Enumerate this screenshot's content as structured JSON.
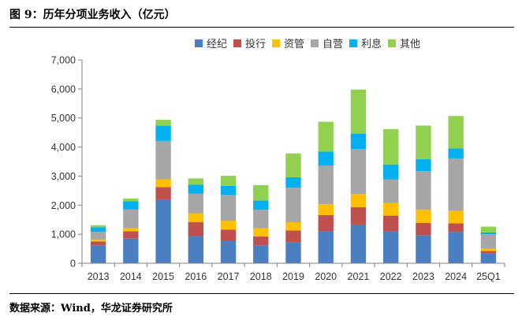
{
  "figure_title": "图 9：历年分项业务收入（亿元）",
  "source_note": "数据来源：Wind，华龙证券研究所",
  "chart_data": {
    "type": "bar",
    "stacked": true,
    "categories": [
      "2013",
      "2014",
      "2015",
      "2016",
      "2017",
      "2018",
      "2019",
      "2020",
      "2021",
      "2022",
      "2023",
      "2024",
      "25Q1"
    ],
    "ylim": [
      0,
      7000
    ],
    "yticks": [
      0,
      1000,
      2000,
      3000,
      4000,
      5000,
      6000,
      7000
    ],
    "ytick_labels": [
      "0",
      "1,000",
      "2,000",
      "3,000",
      "4,000",
      "5,000",
      "6,000",
      "7,000"
    ],
    "legend_position": "top",
    "grid": false,
    "series": [
      {
        "name": "经纪",
        "color": "#4a7fc1",
        "values": [
          620,
          850,
          2200,
          920,
          760,
          620,
          730,
          1100,
          1330,
          1100,
          960,
          1080,
          330
        ]
      },
      {
        "name": "投行",
        "color": "#c0504d",
        "values": [
          130,
          250,
          420,
          500,
          400,
          300,
          400,
          560,
          600,
          540,
          430,
          290,
          90
        ]
      },
      {
        "name": "资管",
        "color": "#ffc000",
        "values": [
          60,
          100,
          270,
          300,
          300,
          280,
          280,
          370,
          450,
          430,
          450,
          430,
          80
        ]
      },
      {
        "name": "自营",
        "color": "#a6a6a6",
        "values": [
          270,
          650,
          1320,
          680,
          900,
          640,
          1190,
          1330,
          1550,
          820,
          1330,
          1810,
          500
        ]
      },
      {
        "name": "利息",
        "color": "#00b0f0",
        "values": [
          160,
          280,
          530,
          300,
          300,
          320,
          360,
          480,
          530,
          510,
          410,
          340,
          60
        ]
      },
      {
        "name": "其他",
        "color": "#92d050",
        "values": [
          70,
          100,
          200,
          220,
          350,
          530,
          820,
          1030,
          1520,
          1220,
          1160,
          1120,
          200
        ]
      }
    ]
  }
}
